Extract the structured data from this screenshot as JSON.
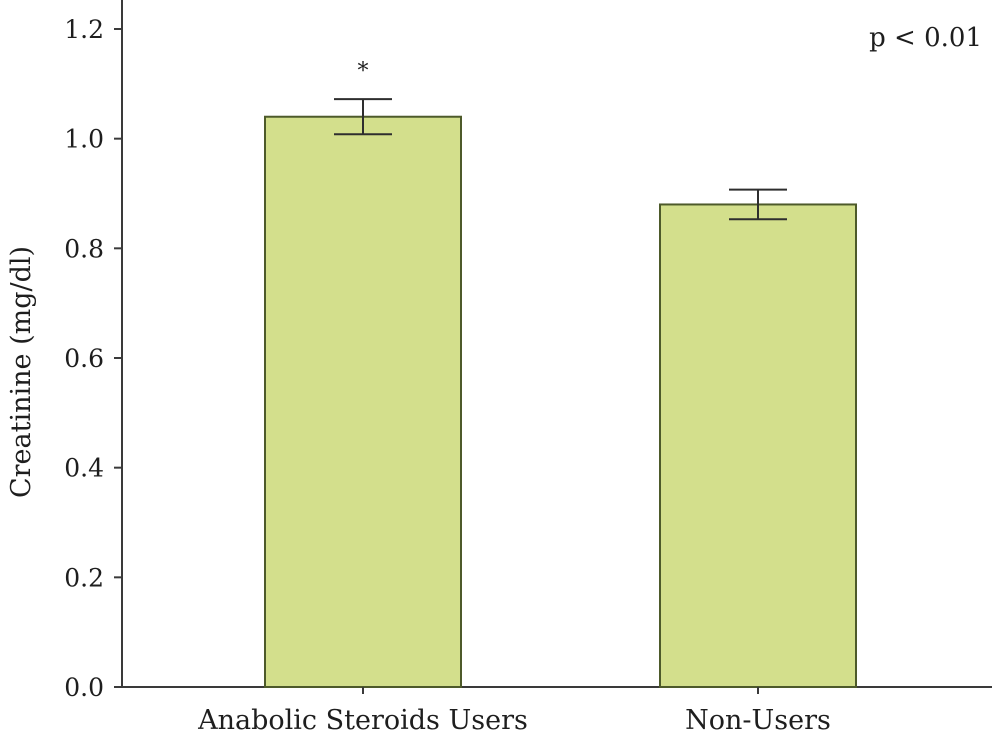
{
  "chart_data": {
    "type": "bar",
    "categories": [
      "Anabolic Steroids Users",
      "Non-Users"
    ],
    "values": [
      1.04,
      0.88
    ],
    "error": [
      0.032,
      0.027
    ],
    "significance": [
      "*",
      ""
    ],
    "ylabel": "Creatinine (mg/dl)",
    "xlabel": "",
    "ylim": [
      0,
      1.2
    ],
    "yticks": [
      "0.0",
      "0.2",
      "0.4",
      "0.6",
      "0.8",
      "1.0",
      "1.2"
    ],
    "annotation": "p < 0.01",
    "grid": false,
    "bar_fill": "#d3df8c",
    "bar_stroke": "#4d5a2a"
  }
}
